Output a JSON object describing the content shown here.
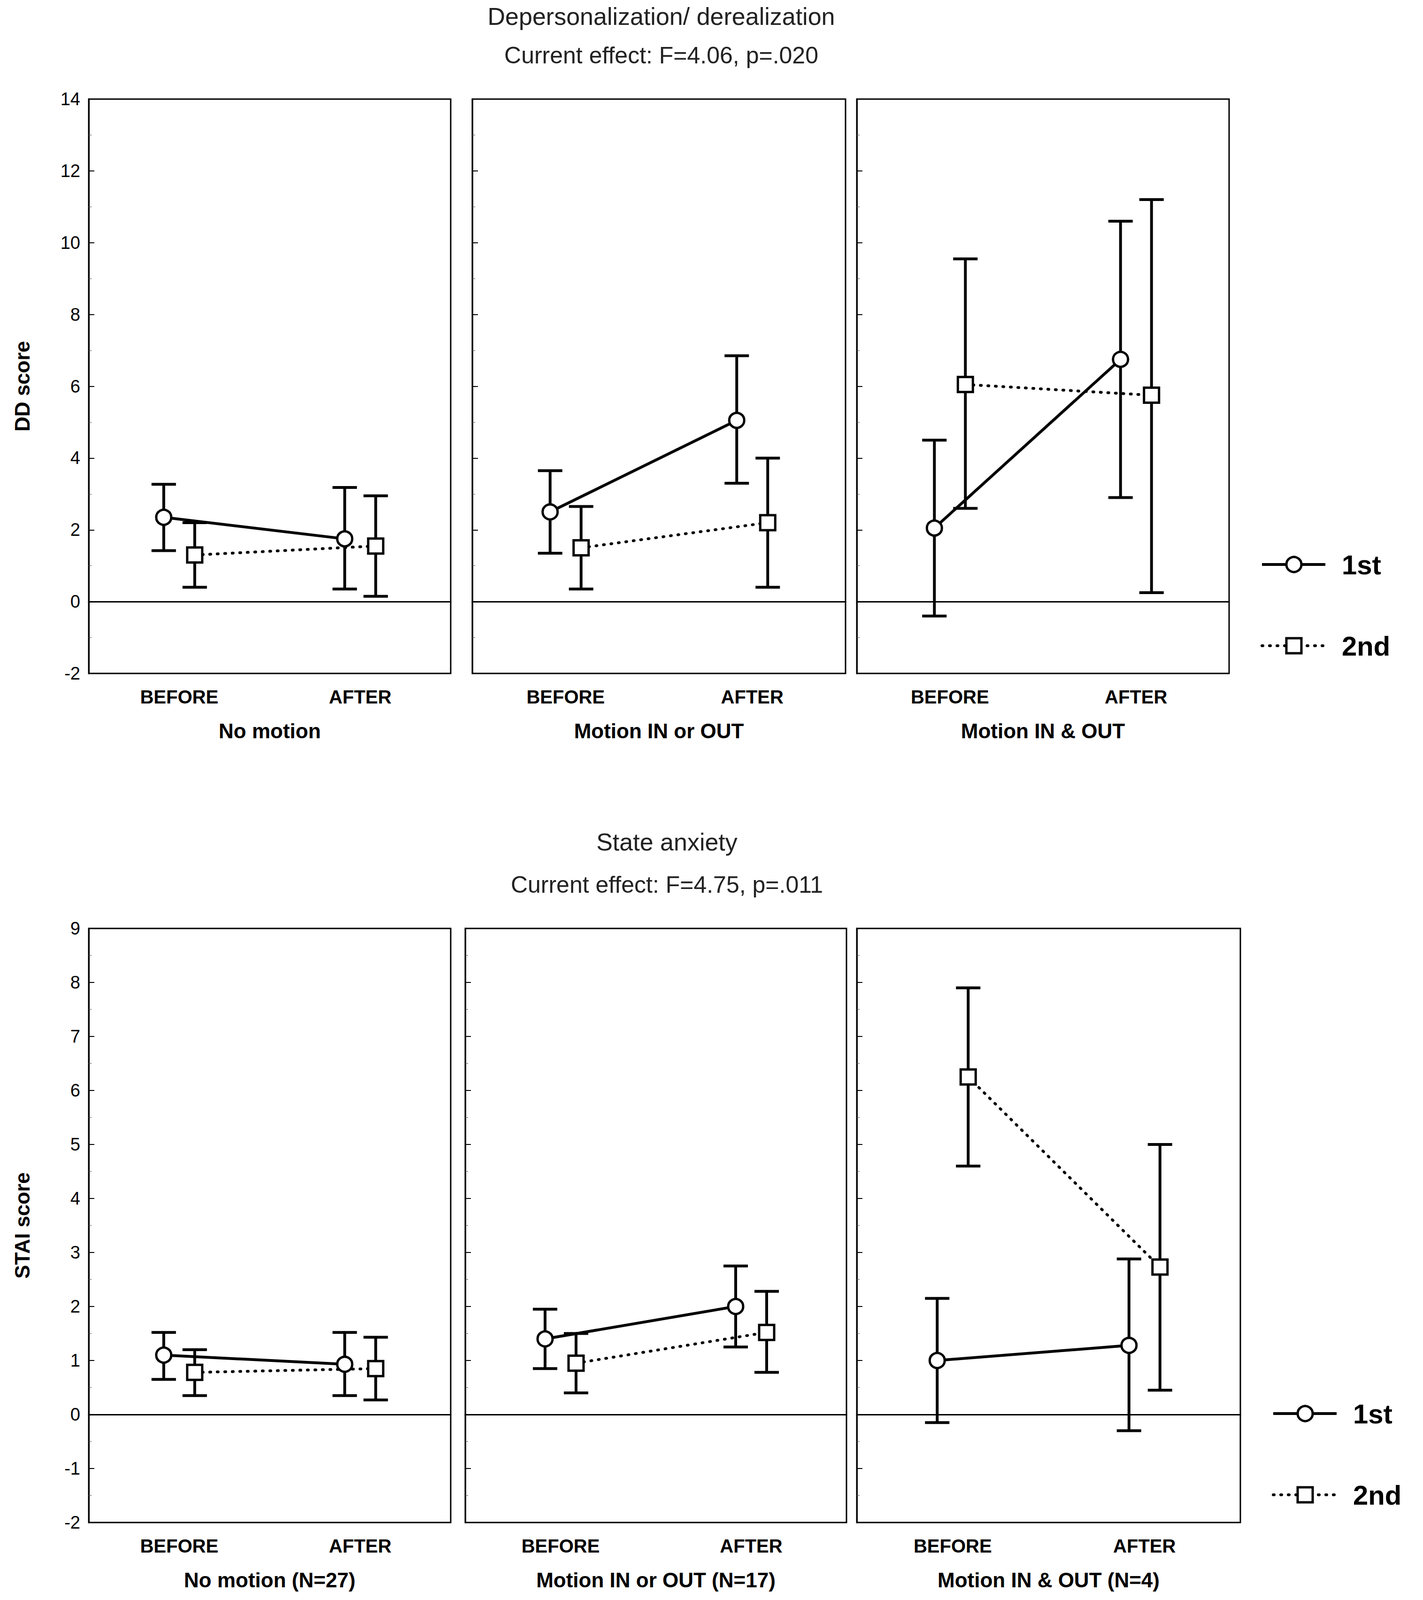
{
  "chart_data": [
    {
      "type": "line",
      "title": "Depersonalization/ derealization",
      "subtitle": "Current effect: F=4.06, p=.020",
      "y_label": "DD score",
      "ylim": [
        -2,
        14
      ],
      "yticks": [
        -2,
        0,
        2,
        4,
        6,
        8,
        10,
        12,
        14
      ],
      "grid": false,
      "legend": "right",
      "panels": [
        {
          "x_label": "No motion",
          "categories": [
            "BEFORE",
            "AFTER"
          ],
          "series": [
            {
              "name": "1st",
              "color": "#000000",
              "marker": "circle",
              "line_style": "solid",
              "values": [
                2.35,
                1.75
              ],
              "ci_low": [
                1.42,
                0.35
              ],
              "ci_high": [
                3.27,
                3.18
              ]
            },
            {
              "name": "2nd",
              "color": "#000000",
              "marker": "square",
              "line_style": "dotted",
              "values": [
                1.3,
                1.55
              ],
              "ci_low": [
                0.4,
                0.15
              ],
              "ci_high": [
                2.2,
                2.95
              ]
            }
          ]
        },
        {
          "x_label": "Motion IN or OUT",
          "categories": [
            "BEFORE",
            "AFTER"
          ],
          "series": [
            {
              "name": "1st",
              "color": "#000000",
              "marker": "circle",
              "line_style": "solid",
              "values": [
                2.5,
                5.05
              ],
              "ci_low": [
                1.35,
                3.3
              ],
              "ci_high": [
                3.65,
                6.85
              ]
            },
            {
              "name": "2nd",
              "color": "#000000",
              "marker": "square",
              "line_style": "dotted",
              "values": [
                1.5,
                2.2
              ],
              "ci_low": [
                0.35,
                0.4
              ],
              "ci_high": [
                2.65,
                4.0
              ]
            }
          ]
        },
        {
          "x_label": "Motion IN & OUT",
          "categories": [
            "BEFORE",
            "AFTER"
          ],
          "series": [
            {
              "name": "1st",
              "color": "#000000",
              "marker": "circle",
              "line_style": "solid",
              "values": [
                2.05,
                6.75
              ],
              "ci_low": [
                -0.4,
                2.9
              ],
              "ci_high": [
                4.5,
                10.6
              ]
            },
            {
              "name": "2nd",
              "color": "#000000",
              "marker": "square",
              "line_style": "dotted",
              "values": [
                6.05,
                5.75
              ],
              "ci_low": [
                2.6,
                0.25
              ],
              "ci_high": [
                9.55,
                11.2
              ]
            }
          ]
        }
      ]
    },
    {
      "type": "line",
      "title": "State anxiety",
      "subtitle": "Current effect: F=4.75, p=.011",
      "y_label": "STAI score",
      "ylim": [
        -2,
        9
      ],
      "yticks": [
        -2,
        -1,
        0,
        1,
        2,
        3,
        4,
        5,
        6,
        7,
        8,
        9
      ],
      "grid": false,
      "legend": "right",
      "panels": [
        {
          "x_label": "No motion (N=27)",
          "categories": [
            "BEFORE",
            "AFTER"
          ],
          "series": [
            {
              "name": "1st",
              "color": "#000000",
              "marker": "circle",
              "line_style": "solid",
              "values": [
                1.1,
                0.93
              ],
              "ci_low": [
                0.65,
                0.35
              ],
              "ci_high": [
                1.52,
                1.52
              ]
            },
            {
              "name": "2nd",
              "color": "#000000",
              "marker": "square",
              "line_style": "dotted",
              "values": [
                0.78,
                0.85
              ],
              "ci_low": [
                0.35,
                0.27
              ],
              "ci_high": [
                1.2,
                1.43
              ]
            }
          ]
        },
        {
          "x_label": "Motion IN or OUT (N=17)",
          "categories": [
            "BEFORE",
            "AFTER"
          ],
          "series": [
            {
              "name": "1st",
              "color": "#000000",
              "marker": "circle",
              "line_style": "solid",
              "values": [
                1.4,
                2.0
              ],
              "ci_low": [
                0.85,
                1.25
              ],
              "ci_high": [
                1.95,
                2.75
              ]
            },
            {
              "name": "2nd",
              "color": "#000000",
              "marker": "square",
              "line_style": "dotted",
              "values": [
                0.95,
                1.52
              ],
              "ci_low": [
                0.4,
                0.78
              ],
              "ci_high": [
                1.5,
                2.28
              ]
            }
          ]
        },
        {
          "x_label": "Motion IN & OUT (N=4)",
          "categories": [
            "BEFORE",
            "AFTER"
          ],
          "series": [
            {
              "name": "1st",
              "color": "#000000",
              "marker": "circle",
              "line_style": "solid",
              "values": [
                1.0,
                1.28
              ],
              "ci_low": [
                -0.15,
                -0.3
              ],
              "ci_high": [
                2.15,
                2.88
              ]
            },
            {
              "name": "2nd",
              "color": "#000000",
              "marker": "square",
              "line_style": "dotted",
              "values": [
                6.25,
                2.73
              ],
              "ci_low": [
                4.6,
                0.45
              ],
              "ci_high": [
                7.9,
                5.0
              ]
            }
          ]
        }
      ]
    }
  ]
}
